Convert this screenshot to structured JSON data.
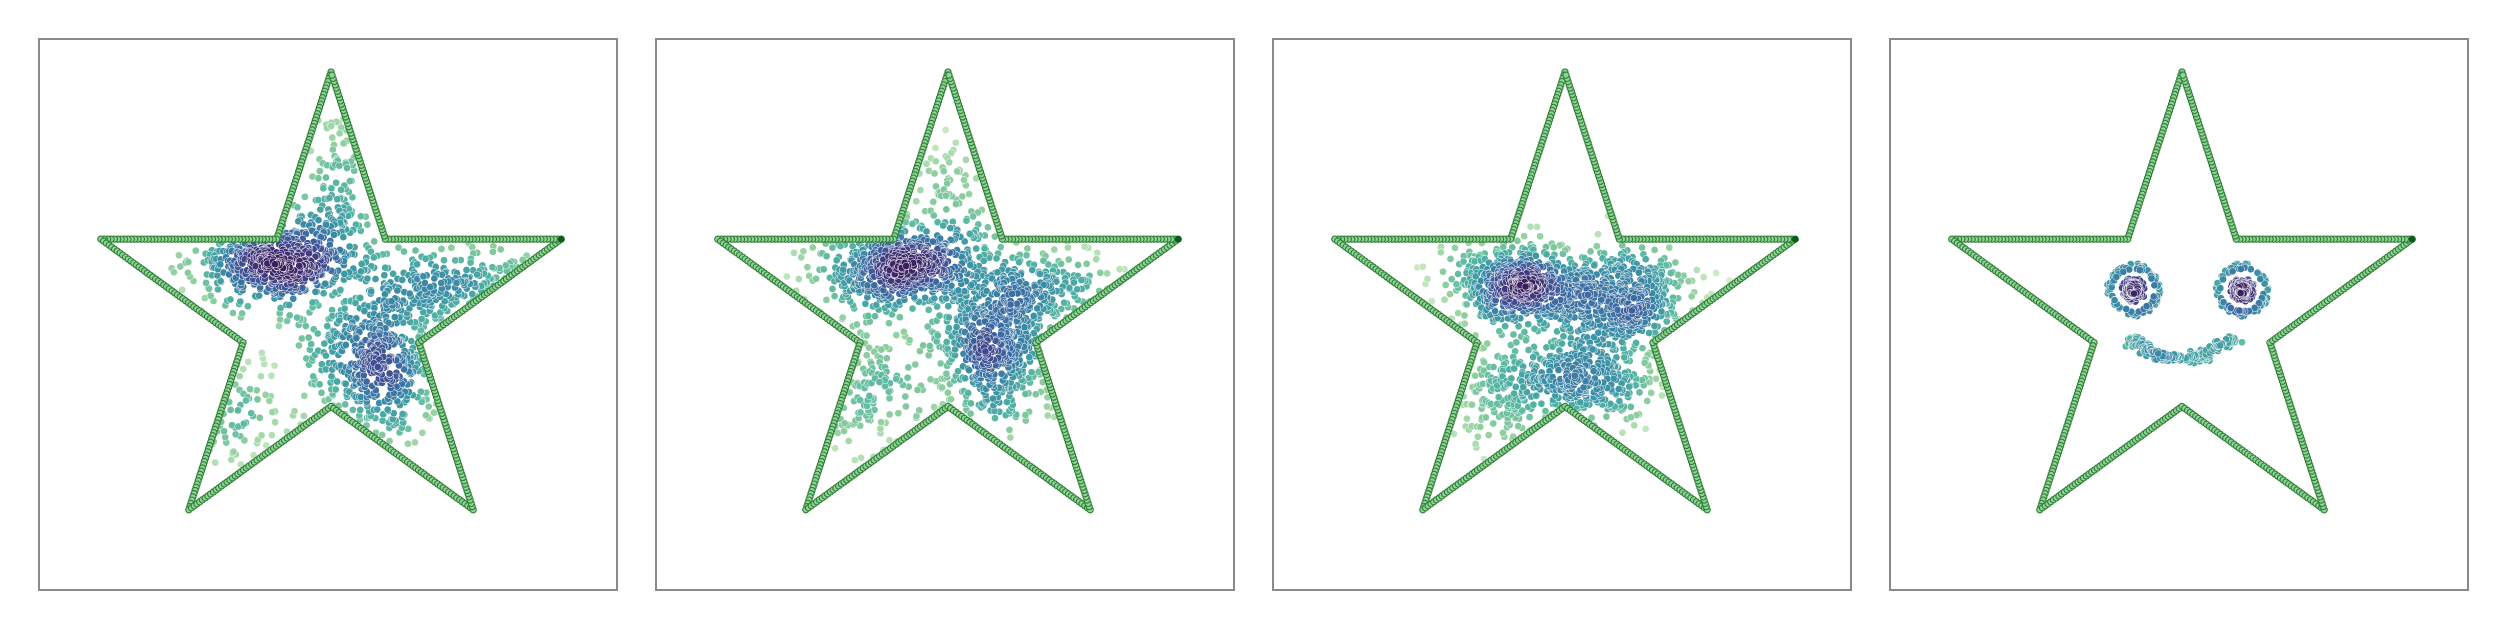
{
  "figure": {
    "colors": {
      "outline_fill": "#8fd39a",
      "outline_stroke": "#2e7d32",
      "outline_end": "#0b5d1e",
      "colormap": [
        "#d6efc9",
        "#8fcf9e",
        "#52b4a3",
        "#3a8fa6",
        "#3c6aa3",
        "#42438a",
        "#3b1f5e"
      ],
      "point_edge": "#ffffff",
      "frame": "#8a8a8a"
    }
  },
  "chart_data": [
    {
      "type": "scatter",
      "title": "",
      "xlabel": "",
      "ylabel": "",
      "xlim": [
        -1.2,
        1.2
      ],
      "ylim": [
        -1.2,
        1.2
      ],
      "axes_visible": false,
      "grid": false,
      "legend": "none",
      "outline": {
        "shape": "star",
        "points": 5,
        "outer_radius": 1.0,
        "inner_radius": 0.382
      },
      "series": [
        {
          "kind": "density_cluster",
          "center": [
            -0.22,
            0.22
          ],
          "spread": [
            0.17,
            0.09
          ],
          "count": 650
        },
        {
          "kind": "density_cluster",
          "center": [
            0.2,
            -0.18
          ],
          "spread": [
            0.14,
            0.17
          ],
          "count": 600
        },
        {
          "kind": "density_cluster",
          "center": [
            0.55,
            0.12
          ],
          "spread": [
            0.2,
            0.08
          ],
          "count": 260
        },
        {
          "kind": "density_cluster",
          "center": [
            -0.45,
            -0.4
          ],
          "spread": [
            0.12,
            0.1
          ],
          "count": 150
        },
        {
          "kind": "density_cluster",
          "center": [
            0.03,
            0.55
          ],
          "spread": [
            0.06,
            0.18
          ],
          "count": 120
        }
      ]
    },
    {
      "type": "scatter",
      "title": "",
      "xlabel": "",
      "ylabel": "",
      "xlim": [
        -1.2,
        1.2
      ],
      "ylim": [
        -1.2,
        1.2
      ],
      "axes_visible": false,
      "grid": false,
      "legend": "none",
      "outline": {
        "shape": "star",
        "points": 5,
        "outer_radius": 1.0,
        "inner_radius": 0.382
      },
      "series": [
        {
          "kind": "density_cluster",
          "center": [
            -0.2,
            0.2
          ],
          "spread": [
            0.16,
            0.09
          ],
          "count": 620
        },
        {
          "kind": "density_cluster",
          "center": [
            0.18,
            -0.15
          ],
          "spread": [
            0.13,
            0.16
          ],
          "count": 580
        },
        {
          "kind": "density_cluster",
          "center": [
            0.38,
            0.1
          ],
          "spread": [
            0.18,
            0.08
          ],
          "count": 240
        },
        {
          "kind": "density_cluster",
          "center": [
            -0.35,
            -0.32
          ],
          "spread": [
            0.1,
            0.16
          ],
          "count": 170
        },
        {
          "kind": "density_cluster",
          "center": [
            0.0,
            0.45
          ],
          "spread": [
            0.08,
            0.14
          ],
          "count": 110
        }
      ]
    },
    {
      "type": "scatter",
      "title": "",
      "xlabel": "",
      "ylabel": "",
      "xlim": [
        -1.2,
        1.2
      ],
      "ylim": [
        -1.2,
        1.2
      ],
      "axes_visible": false,
      "grid": false,
      "legend": "none",
      "outline": {
        "shape": "star",
        "points": 5,
        "outer_radius": 1.0,
        "inner_radius": 0.382
      },
      "series": [
        {
          "kind": "density_cluster",
          "center": [
            -0.2,
            0.12
          ],
          "spread": [
            0.14,
            0.09
          ],
          "count": 560
        },
        {
          "kind": "density_cluster",
          "center": [
            0.22,
            0.07
          ],
          "spread": [
            0.16,
            0.1
          ],
          "count": 560
        },
        {
          "kind": "density_cluster",
          "center": [
            0.05,
            -0.27
          ],
          "spread": [
            0.18,
            0.1
          ],
          "count": 460
        },
        {
          "kind": "density_cluster",
          "center": [
            -0.28,
            -0.35
          ],
          "spread": [
            0.1,
            0.1
          ],
          "count": 120
        }
      ]
    },
    {
      "type": "scatter",
      "title": "",
      "xlabel": "",
      "ylabel": "",
      "xlim": [
        -1.2,
        1.2
      ],
      "ylim": [
        -1.2,
        1.2
      ],
      "axes_visible": false,
      "grid": false,
      "legend": "none",
      "outline": {
        "shape": "star",
        "points": 5,
        "outer_radius": 1.0,
        "inner_radius": 0.382
      },
      "series": [
        {
          "kind": "eye",
          "center": [
            -0.2,
            0.1
          ],
          "radius": 0.1,
          "count": 200
        },
        {
          "kind": "eye",
          "center": [
            0.25,
            0.1
          ],
          "radius": 0.1,
          "count": 200
        },
        {
          "kind": "smile",
          "center": [
            0.0,
            -0.22
          ],
          "radius": 0.22,
          "arc_deg": [
            200,
            340
          ],
          "count": 170
        }
      ]
    }
  ]
}
